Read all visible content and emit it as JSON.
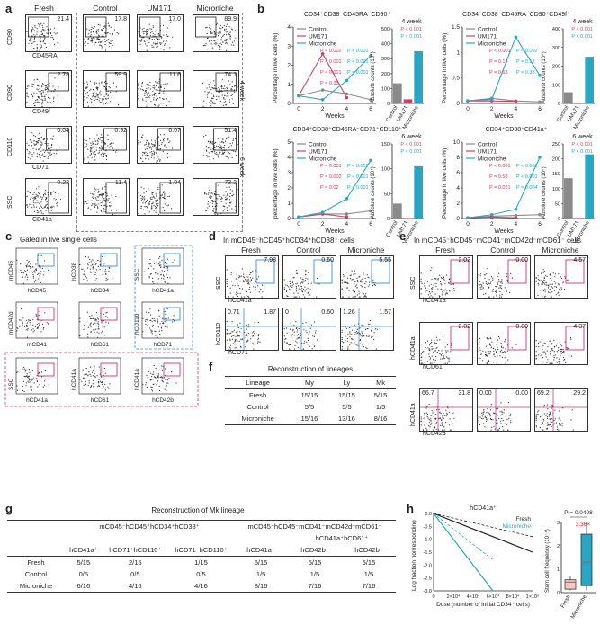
{
  "panels": {
    "a": {
      "label": "a",
      "columns": [
        "Fresh",
        "Control",
        "UM171",
        "Microniche"
      ],
      "side_labels": [
        "4 week",
        "6 week"
      ],
      "rows": [
        {
          "ylabel": "CD90",
          "xlabel": "CD45RA",
          "values": [
            "21.4",
            "17.8",
            "17.0",
            "89.9"
          ]
        },
        {
          "ylabel": "CD90",
          "xlabel": "CD49f",
          "values": [
            "2.78",
            "59.9",
            "11.6",
            "74.1"
          ]
        },
        {
          "ylabel": "CD110",
          "xlabel": "CD71",
          "values": [
            "0.04",
            "0.92",
            "0.07",
            "51.4"
          ]
        },
        {
          "ylabel": "SSC",
          "xlabel": "CD41a",
          "values": [
            "0.22",
            "11.4",
            "1.04",
            "73.2"
          ]
        }
      ]
    },
    "b": {
      "label": "b"
    },
    "c": {
      "label": "c",
      "title": "Gated in live single cells",
      "axes": [
        "mCD45",
        "hCD45",
        "hCD38",
        "hCD34",
        "SSC",
        "hCD41a",
        "mCD42d",
        "mCD41",
        "hCD61",
        "hCD110",
        "hCD71",
        "SSC",
        "hCD41a",
        "hCD41a",
        "hCD61",
        "hCD41a",
        "hCD42b"
      ]
    },
    "d": {
      "label": "d",
      "title": "In mCD45⁻hCD45⁺hCD34⁺hCD38⁺ cells",
      "columns": [
        "Fresh",
        "Control",
        "Microniche"
      ],
      "row1": {
        "ylabel": "SSC",
        "xlabel": "hCD41a",
        "values": [
          "7.98",
          "0.60",
          "5.55"
        ]
      },
      "row2": {
        "ylabel": "hCD110",
        "xlabel": "hCD71",
        "values": [
          [
            "0.71",
            "1.87"
          ],
          [
            "0",
            "0.60"
          ],
          [
            "1.26",
            "1.57"
          ]
        ]
      }
    },
    "e": {
      "label": "e",
      "title": "In mCD45⁻hCD45⁻mCD41⁻mCD42d⁻mCD61⁻ cells",
      "columns": [
        "Fresh",
        "Control",
        "Microniche"
      ],
      "row1": {
        "ylabel": "SSC",
        "xlabel": "hCD41a",
        "values": [
          "2.02",
          "0.00",
          "4.57"
        ]
      },
      "row2": {
        "ylabel": "hCD41a",
        "xlabel": "hCD61",
        "values": [
          "2.02",
          "0.00",
          "4.37"
        ]
      },
      "row3": {
        "ylabel": "hCD41a",
        "xlabel": "hCD42b",
        "values": [
          [
            "66.7",
            "31.8"
          ],
          [
            "0.00",
            "0.00"
          ],
          [
            "69.2",
            "29.2"
          ]
        ]
      }
    },
    "f": {
      "label": "f",
      "title": "Reconstruction of lineages",
      "headers": [
        "Lineage",
        "My",
        "Ly",
        "Mk"
      ],
      "rows": [
        [
          "Fresh",
          "15/15",
          "15/15",
          "5/15"
        ],
        [
          "Control",
          "5/5",
          "5/5",
          "1/5"
        ],
        [
          "Microniche",
          "15/16",
          "13/16",
          "8/16"
        ]
      ]
    },
    "g": {
      "label": "g",
      "title": "Reconstruction of Mk lineage",
      "group1": "mCD45⁻hCD45⁺hCD34⁺hCD38⁺",
      "group2": "mCD45⁻hCD45⁻mCD41⁻mCD42d⁻mCD61⁻",
      "subgroup": "hCD41a⁺hCD61⁺",
      "headers": [
        "hCD41a⁺",
        "hCD71⁺hCD110⁺",
        "hCD71⁻hCD110⁺",
        "hCD41a⁺",
        "hCD42b⁻",
        "hCD42b⁺"
      ],
      "rows": [
        [
          "Fresh",
          "5/15",
          "2/15",
          "1/15",
          "5/15",
          "5/15",
          "5/15"
        ],
        [
          "Control",
          "0/5",
          "0/5",
          "0/5",
          "1/5",
          "1/5",
          "1/5"
        ],
        [
          "Microniche",
          "6/16",
          "4/16",
          "4/16",
          "8/16",
          "7/16",
          "7/16"
        ]
      ]
    },
    "h": {
      "label": "h"
    }
  },
  "colors": {
    "control": "#8a8a8a",
    "um171": "#c8455f",
    "microniche": "#2aa6c3",
    "blue_gate": "#3a8fd6",
    "pink_gate": "#d6337a"
  },
  "chart_data": [
    {
      "type": "line",
      "title": "CD34⁺CD38⁻CD45RA⁻CD90⁺",
      "xlabel": "Weeks",
      "ylabel": "Percentage in live cells (%)",
      "x": [
        0,
        2,
        4,
        6
      ],
      "ylim": [
        0,
        4
      ],
      "yticks": [
        0,
        1,
        2,
        3,
        4
      ],
      "series": [
        {
          "name": "Control",
          "values": [
            0.4,
            0.7,
            0.5,
            0.2
          ]
        },
        {
          "name": "UM171",
          "values": [
            0.4,
            2.6,
            0.3,
            null
          ]
        },
        {
          "name": "Microniche",
          "values": [
            0.4,
            0.2,
            1.2,
            2.5
          ]
        }
      ],
      "annotations": [
        "P < 0.002",
        "P < 0.001",
        "P < 0.001",
        "P < 0.001",
        "P < 0.001",
        "P = 0.001",
        "P = 0.35"
      ]
    },
    {
      "type": "bar",
      "title": "4 week",
      "ylabel": "Absolute counts (10⁴)",
      "categories": [
        "Control",
        "UM171",
        "Microniche"
      ],
      "values": [
        135,
        28,
        350
      ],
      "ylim": [
        0,
        500
      ],
      "yticks": [
        0,
        100,
        200,
        300,
        400,
        500
      ],
      "annotations": [
        "P < 0.001",
        "P < 0.001"
      ]
    },
    {
      "type": "line",
      "title": "CD34⁺CD38⁻CD45RA⁻CD90⁺CD49f⁺",
      "xlabel": "Weeks",
      "ylabel": "Percentage in live cells (%)",
      "x": [
        0,
        2,
        4,
        6
      ],
      "ylim": [
        0,
        1.5
      ],
      "yticks": [
        0,
        0.5,
        1.0,
        1.5
      ],
      "series": [
        {
          "name": "Control",
          "values": [
            0.05,
            0.1,
            0.05,
            0.03
          ]
        },
        {
          "name": "UM171",
          "values": [
            0.05,
            0.05,
            0.04,
            null
          ]
        },
        {
          "name": "Microniche",
          "values": [
            0.05,
            0.08,
            1.3,
            0.55
          ]
        }
      ],
      "annotations": [
        "P < 0.001",
        "P = 0.002",
        "P = 0.14",
        "P = 0.12",
        "P = 0.63",
        "P = 0.38"
      ]
    },
    {
      "type": "bar",
      "title": "4 week",
      "ylabel": "Absolute counts (10⁴)",
      "categories": [
        "Control",
        "UM171",
        "Microniche"
      ],
      "values": [
        60,
        2,
        250
      ],
      "ylim": [
        0,
        400
      ],
      "yticks": [
        0,
        100,
        200,
        300,
        400
      ],
      "annotations": [
        "P < 0.001",
        "P < 0.001"
      ]
    },
    {
      "type": "line",
      "title": "CD34⁺CD38⁺CD45RA⁻CD71⁺CD110⁺",
      "xlabel": "Weeks",
      "ylabel": "percentage in live cells (%)",
      "x": [
        0,
        2,
        4,
        6
      ],
      "ylim": [
        0,
        5
      ],
      "yticks": [
        0,
        1,
        2,
        3,
        4,
        5
      ],
      "series": [
        {
          "name": "Control",
          "values": [
            0.1,
            0.3,
            0.3,
            0.5
          ]
        },
        {
          "name": "UM171",
          "values": [
            0.1,
            0.3,
            0.1,
            null
          ]
        },
        {
          "name": "Microniche",
          "values": [
            0.1,
            0.4,
            1.3,
            3.8
          ]
        }
      ],
      "annotations": [
        "P < 0.001",
        "P < 0.001",
        "P = 0.002",
        "P < 0.001",
        "P = 0.02",
        "P < 0.001"
      ]
    },
    {
      "type": "bar",
      "title": "6 week",
      "ylabel": "Absolute counts (10⁴)",
      "categories": [
        "Control",
        "UM171",
        "Microniche"
      ],
      "values": [
        30,
        1,
        105
      ],
      "ylim": [
        0,
        150
      ],
      "yticks": [
        0,
        50,
        100,
        150
      ],
      "annotations": [
        "P < 0.001",
        "P < 0.001"
      ]
    },
    {
      "type": "line",
      "title": "CD34⁺CD38⁺CD41a⁺",
      "xlabel": "Weeks",
      "ylabel": "Percentage in live cells (%)",
      "x": [
        0,
        2,
        4,
        6
      ],
      "ylim": [
        0,
        10
      ],
      "yticks": [
        0,
        2,
        4,
        6,
        8,
        10
      ],
      "series": [
        {
          "name": "Control",
          "values": [
            0.1,
            0.3,
            0.4,
            0.5
          ]
        },
        {
          "name": "UM171",
          "values": [
            0.1,
            0.2,
            0.1,
            null
          ]
        },
        {
          "name": "Microniche",
          "values": [
            0.1,
            0.5,
            1.2,
            8.0
          ]
        }
      ],
      "annotations": [
        "P < 0.001",
        "P < 0.001",
        "P = 0.58",
        "P < 0.001",
        "P = 0.021",
        "P = 0.004"
      ]
    },
    {
      "type": "bar",
      "title": "6 week",
      "ylabel": "Absolute counts (10⁴)",
      "categories": [
        "Control",
        "UM171",
        "Microniche"
      ],
      "values": [
        135,
        2,
        215
      ],
      "ylim": [
        0,
        250
      ],
      "yticks": [
        0,
        50,
        100,
        150,
        200,
        250
      ],
      "annotations": [
        "P < 0.001",
        "P < 0.001"
      ]
    },
    {
      "type": "line",
      "title": "hCD41a⁺",
      "xlabel": "Dose (number of initial CD34⁺ cells)",
      "ylabel": "Log fraction nonresponding",
      "x": [
        0,
        20000,
        40000,
        60000,
        80000,
        100000
      ],
      "ylim": [
        -3.0,
        0
      ],
      "yticks": [
        0,
        -0.5,
        -1.0,
        -1.5,
        -2.0,
        -2.5,
        -3.0
      ],
      "xticks": [
        "0",
        "2×10⁴",
        "4×10⁴",
        "6×10⁴",
        "8×10⁴",
        "1×10⁵"
      ],
      "series": [
        {
          "name": "Fresh",
          "values": [
            0,
            -0.3,
            -0.6,
            -0.9,
            -1.2,
            -1.5
          ]
        },
        {
          "name": "Microniche",
          "values": [
            0,
            -1.0,
            -2.0,
            -3.0,
            null,
            null
          ]
        }
      ]
    },
    {
      "type": "box",
      "ylabel": "Stem cell frequency (10⁻⁴)",
      "categories": [
        "Fresh",
        "Microniche"
      ],
      "ylim": [
        0,
        3
      ],
      "yticks": [
        0,
        1,
        2,
        3
      ],
      "boxes": [
        {
          "name": "Fresh",
          "low": 0.1,
          "q1": 0.15,
          "median": 0.45,
          "q3": 0.55,
          "high": 0.7
        },
        {
          "name": "Microniche",
          "low": 0.1,
          "q1": 0.3,
          "median": 1.3,
          "q3": 2.5,
          "high": 3.0
        }
      ],
      "annotations": [
        "P = 0.0408",
        "3.36×"
      ]
    }
  ]
}
